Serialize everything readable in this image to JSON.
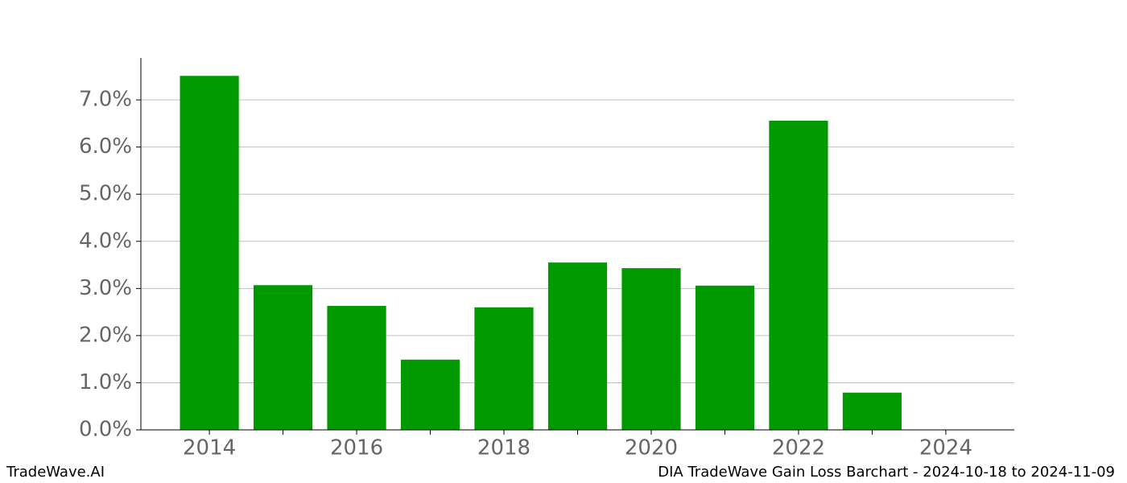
{
  "chart_data": {
    "type": "bar",
    "title": "DIA TradeWave Gain Loss Barchart - 2024-10-18 to 2024-11-09",
    "source": "TradeWave.AI",
    "x": [
      2014,
      2015,
      2016,
      2017,
      2018,
      2019,
      2020,
      2021,
      2022,
      2023
    ],
    "values": [
      7.51,
      3.07,
      2.63,
      1.49,
      2.6,
      3.55,
      3.43,
      3.06,
      6.56,
      0.79
    ],
    "color": "#009900",
    "bar_width": 0.8,
    "xlim": [
      2013.07,
      2024.93
    ],
    "xticks": [
      2014,
      2016,
      2018,
      2020,
      2022,
      2024
    ],
    "xticks_minor": [
      2015,
      2017,
      2019,
      2021,
      2023
    ],
    "ylim": [
      0,
      7.89
    ],
    "yticks": [
      {
        "value": 0,
        "label": "0.0%"
      },
      {
        "value": 1,
        "label": "1.0%"
      },
      {
        "value": 2,
        "label": "2.0%"
      },
      {
        "value": 3,
        "label": "3.0%"
      },
      {
        "value": 4,
        "label": "4.0%"
      },
      {
        "value": 5,
        "label": "5.0%"
      },
      {
        "value": 6,
        "label": "6.0%"
      },
      {
        "value": 7,
        "label": "7.0%"
      }
    ],
    "grid": true
  }
}
